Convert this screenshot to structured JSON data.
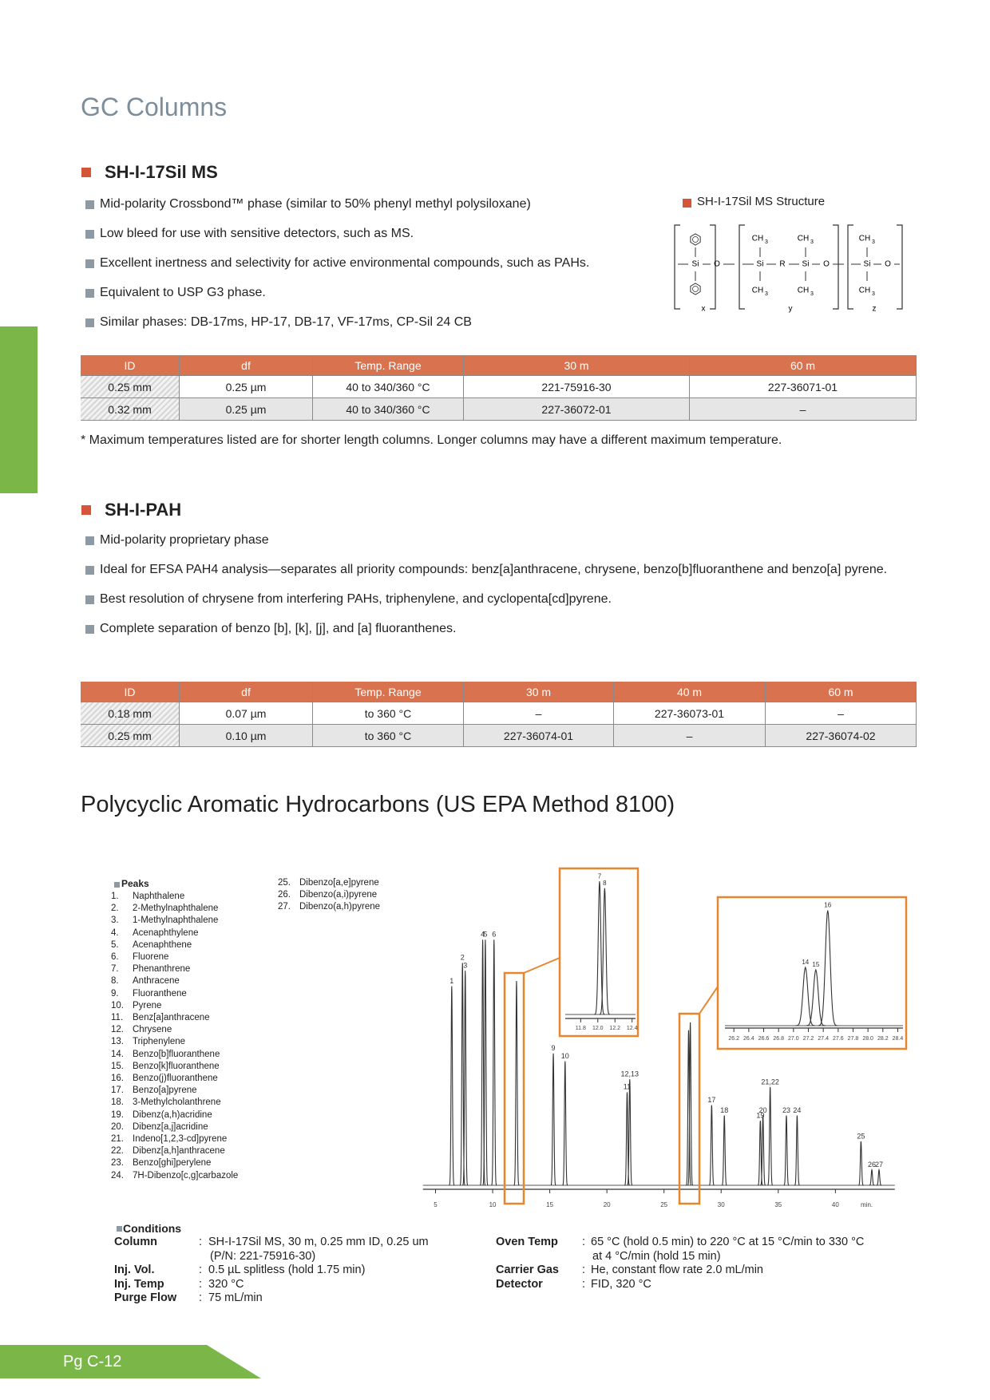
{
  "header": {
    "title": "GC Columns",
    "page_number": "Pg C-12"
  },
  "sections": [
    {
      "title": "SH-I-17Sil MS",
      "bullets": [
        "Mid-polarity Crossbond™ phase (similar to 50% phenyl methyl polysiloxane)",
        "Low bleed for use with sensitive detectors, such as MS.",
        "Excellent inertness and selectivity for active environmental compounds, such as PAHs.",
        "Equivalent to USP G3 phase.",
        "Similar phases: DB-17ms, HP-17, DB-17, VF-17ms, CP-Sil 24 CB"
      ],
      "structure": {
        "title": "SH-I-17Sil MS Structure",
        "silicon": "Si",
        "oxygen": "O",
        "group": "R",
        "methyl": "CH",
        "methyl_subscript": "3",
        "indices": [
          "x",
          "y",
          "z"
        ]
      },
      "table": {
        "headers": [
          "ID",
          "df",
          "Temp. Range",
          "30 m",
          "60 m"
        ],
        "rows": [
          [
            "0.25 mm",
            "0.25 µm",
            "40 to 340/360 °C",
            "221-75916-30",
            "227-36071-01"
          ],
          [
            "0.32 mm",
            "0.25 µm",
            "40 to 340/360 °C",
            "227-36072-01",
            "–"
          ]
        ]
      },
      "note": "* Maximum temperatures listed are for shorter length columns. Longer columns may have a different maximum temperature."
    },
    {
      "title": "SH-I-PAH",
      "bullets": [
        "Mid-polarity proprietary phase",
        "Ideal for EFSA PAH4 analysis—separates all priority compounds: benz[a]anthracene, chrysene, benzo[b]fluoranthene and benzo[a] pyrene.",
        "Best resolution of chrysene from interfering PAHs, triphenylene, and cyclopenta[cd]pyrene.",
        "Complete separation of benzo [b], [k], [j], and [a] fluoranthenes."
      ],
      "table": {
        "headers": [
          "ID",
          "df",
          "Temp. Range",
          "30 m",
          "40 m",
          "60 m"
        ],
        "rows": [
          [
            "0.18 mm",
            "0.07 µm",
            "to 360 °C",
            "–",
            "227-36073-01",
            "–"
          ],
          [
            "0.25 mm",
            "0.10 µm",
            "to 360 °C",
            "227-36074-01",
            "–",
            "227-36074-02"
          ]
        ]
      }
    }
  ],
  "application": {
    "title": "Polycyclic Aromatic Hydrocarbons (US EPA Method 8100)",
    "peaks_heading": "Peaks",
    "peak_list": [
      {
        "no": "1.",
        "name": "Naphthalene"
      },
      {
        "no": "2.",
        "name": "2-Methylnaphthalene"
      },
      {
        "no": "3.",
        "name": "1-Methylnaphthalene"
      },
      {
        "no": "4.",
        "name": "Acenaphthylene"
      },
      {
        "no": "5.",
        "name": "Acenaphthene"
      },
      {
        "no": "6.",
        "name": "Fluorene"
      },
      {
        "no": "7.",
        "name": "Phenanthrene"
      },
      {
        "no": "8.",
        "name": "Anthracene"
      },
      {
        "no": "9.",
        "name": "Fluoranthene"
      },
      {
        "no": "10.",
        "name": "Pyrene"
      },
      {
        "no": "11.",
        "name": "Benz[a]anthracene"
      },
      {
        "no": "12.",
        "name": "Chrysene"
      },
      {
        "no": "13.",
        "name": "Triphenylene"
      },
      {
        "no": "14.",
        "name": "Benzo[b]fluoranthene"
      },
      {
        "no": "15.",
        "name": "Benzo[k]fluoranthene"
      },
      {
        "no": "16.",
        "name": "Benzo(j)fluoranthene"
      },
      {
        "no": "17.",
        "name": "Benzo[a]pyrene"
      },
      {
        "no": "18.",
        "name": "3-Methylcholanthrene"
      },
      {
        "no": "19.",
        "name": "Dibenz(a,h)acridine"
      },
      {
        "no": "20.",
        "name": "Dibenz[a,j]acridine"
      },
      {
        "no": "21.",
        "name": "Indeno[1,2,3-cd]pyrene"
      },
      {
        "no": "22.",
        "name": "Dibenz[a,h]anthracene"
      },
      {
        "no": "23.",
        "name": "Benzo[ghi]perylene"
      },
      {
        "no": "24.",
        "name": "7H-Dibenzo[c,g]carbazole"
      },
      {
        "no": "25.",
        "name": "Dibenzo[a,e]pyrene"
      },
      {
        "no": "26.",
        "name": "Dibenzo(a,i)pyrene"
      },
      {
        "no": "27.",
        "name": "Dibenzo(a,h)pyrene"
      }
    ],
    "chromatogram": {
      "xlim": [
        3.9,
        45.2
      ],
      "ylim": [
        0,
        100
      ],
      "xticks": [
        5,
        10,
        15,
        20,
        25,
        30,
        35,
        40
      ],
      "x_unit": "min.",
      "peaks": [
        {
          "label": "1",
          "rt": 6.42,
          "height": 77
        },
        {
          "label": "2",
          "rt": 7.36,
          "height": 86
        },
        {
          "label": "3",
          "rt": 7.6,
          "height": 83
        },
        {
          "label": "4",
          "rt": 9.13,
          "height": 95
        },
        {
          "label": "5",
          "rt": 9.36,
          "height": 95
        },
        {
          "label": "6",
          "rt": 10.12,
          "height": 95
        },
        {
          "label": null,
          "rt": 12.09,
          "height": 79
        },
        {
          "label": "9",
          "rt": 15.31,
          "height": 51
        },
        {
          "label": "10",
          "rt": 16.34,
          "height": 48
        },
        {
          "label": "11",
          "rt": 21.77,
          "height": 36
        },
        {
          "label": "12,13",
          "rt": 22.0,
          "height": 41
        },
        {
          "label": null,
          "rt": 27.15,
          "height": 60
        },
        {
          "label": null,
          "rt": 27.3,
          "height": 63
        },
        {
          "label": "17",
          "rt": 29.17,
          "height": 31
        },
        {
          "label": "18",
          "rt": 30.28,
          "height": 27
        },
        {
          "label": "19",
          "rt": 33.43,
          "height": 25
        },
        {
          "label": "20",
          "rt": 33.66,
          "height": 27
        },
        {
          "label": "21,22",
          "rt": 34.29,
          "height": 38
        },
        {
          "label": "23",
          "rt": 35.71,
          "height": 27
        },
        {
          "label": "24",
          "rt": 36.65,
          "height": 27
        },
        {
          "label": "25",
          "rt": 42.24,
          "height": 17
        },
        {
          "label": "26",
          "rt": 43.19,
          "height": 6
        },
        {
          "label": "27",
          "rt": 43.82,
          "height": 6
        }
      ],
      "insets": [
        {
          "xlim": [
            11.62,
            12.44
          ],
          "ylim": [
            0,
            100
          ],
          "xticks": [
            11.8,
            {
              "value": 12,
              "label": "12.0"
            },
            12.2,
            12.4
          ],
          "peaks": [
            {
              "label": "7",
              "rt": 12.02,
              "height": 97
            },
            {
              "label": "8",
              "rt": 12.08,
              "height": 92
            }
          ]
        },
        {
          "xlim": [
            26.08,
            28.47
          ],
          "ylim": [
            0,
            100
          ],
          "xticks": [
            26.2,
            26.4,
            26.6,
            26.8,
            {
              "value": 27,
              "label": "27.0"
            },
            27.2,
            27.4,
            27.6,
            27.8,
            {
              "value": 28,
              "label": "28.0"
            },
            28.2,
            28.4
          ],
          "peaks": [
            {
              "label": "14",
              "rt": 27.16,
              "height": 48
            },
            {
              "label": "15",
              "rt": 27.3,
              "height": 46
            },
            {
              "label": "16",
              "rt": 27.46,
              "height": 95
            }
          ]
        }
      ]
    },
    "conditions": {
      "heading": "Conditions",
      "separator": ":",
      "left": [
        {
          "label": "Column",
          "value": [
            "SH-I-17Sil MS, 30 m, 0.25 mm ID, 0.25 um",
            "(P/N: 221-75916-30)"
          ]
        },
        {
          "label": "Inj. Vol.",
          "value": [
            "0.5 µL splitless (hold 1.75 min)"
          ]
        },
        {
          "label": "Inj. Temp",
          "value": [
            "320 °C"
          ]
        },
        {
          "label": "Purge Flow",
          "value": [
            "75 mL/min"
          ]
        }
      ],
      "right": [
        {
          "label": "Oven Temp",
          "value": [
            "65 °C (hold 0.5 min) to 220 °C at 15 °C/min to 330 °C",
            "at 4 °C/min (hold 15 min)"
          ]
        },
        {
          "label": "Carrier Gas",
          "value": [
            "He, constant flow rate 2.0 mL/min"
          ]
        },
        {
          "label": "Detector",
          "value": [
            "FID, 320 °C"
          ]
        }
      ]
    }
  }
}
